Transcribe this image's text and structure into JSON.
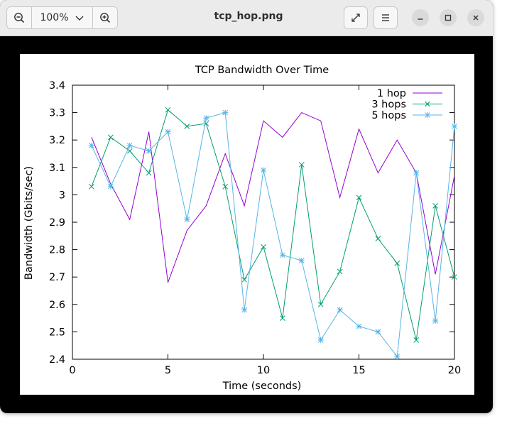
{
  "window": {
    "title": "tcp_hop.png",
    "zoom_level": "100%",
    "icons": {
      "zoom_out": "zoom-out-icon",
      "zoom_dropdown": "chevron-down-icon",
      "zoom_in": "zoom-in-icon",
      "fullscreen": "fullscreen-icon",
      "menu": "hamburger-menu-icon",
      "minimize": "minimize-icon",
      "maximize": "maximize-icon",
      "close": "close-icon"
    }
  },
  "chart_data": {
    "type": "line",
    "title": "TCP Bandwidth Over Time",
    "xlabel": "Time (seconds)",
    "ylabel": "Bandwidth (Gbits/sec)",
    "xlim": [
      0,
      20
    ],
    "ylim": [
      2.4,
      3.4
    ],
    "xticks": [
      0,
      5,
      10,
      15,
      20
    ],
    "yticks": [
      2.4,
      2.5,
      2.6,
      2.7,
      2.8,
      2.9,
      3,
      3.1,
      3.2,
      3.3,
      3.4
    ],
    "ytick_labels": [
      "2.4",
      "2.5",
      "2.6",
      "2.7",
      "2.8",
      "2.9",
      "3",
      "3.1",
      "3.2",
      "3.3",
      "3.4"
    ],
    "grid": false,
    "legend_position": "top-right",
    "x": [
      1,
      2,
      3,
      4,
      5,
      6,
      7,
      8,
      9,
      10,
      11,
      12,
      13,
      14,
      15,
      16,
      17,
      18,
      19,
      20
    ],
    "series": [
      {
        "name": "1 hop",
        "color": "#9400d3",
        "marker": "none",
        "values": [
          3.21,
          3.04,
          2.91,
          3.23,
          2.68,
          2.87,
          2.96,
          3.15,
          2.96,
          3.27,
          3.21,
          3.3,
          3.27,
          2.99,
          3.24,
          3.08,
          3.2,
          3.08,
          2.71,
          3.07
        ]
      },
      {
        "name": "3 hops",
        "color": "#009e73",
        "marker": "x",
        "values": [
          3.03,
          3.21,
          3.16,
          3.08,
          3.31,
          3.25,
          3.26,
          3.03,
          2.69,
          2.81,
          2.55,
          3.11,
          2.6,
          2.72,
          2.99,
          2.84,
          2.75,
          2.47,
          2.96,
          2.7
        ]
      },
      {
        "name": "5 hops",
        "color": "#56b4e9",
        "marker": "star",
        "values": [
          3.18,
          3.03,
          3.18,
          3.16,
          3.23,
          2.91,
          3.28,
          3.3,
          2.58,
          3.09,
          2.78,
          2.76,
          2.47,
          2.58,
          2.52,
          2.5,
          2.41,
          3.08,
          2.54,
          3.25
        ]
      }
    ]
  }
}
